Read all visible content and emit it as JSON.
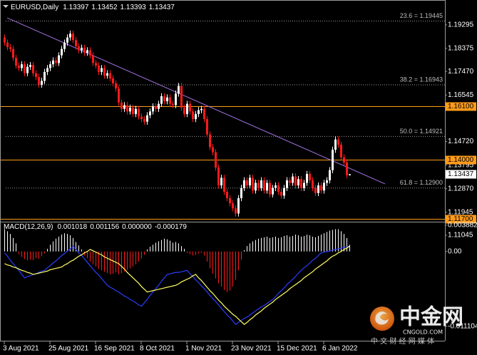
{
  "chart_data": [
    {
      "type": "candlestick",
      "title": "EURUSD,Daily",
      "up_color": "#ffffff",
      "down_color": "#ff1a1a",
      "open": [
        1.188,
        1.186,
        1.1842,
        1.1835,
        1.18,
        1.177,
        1.176,
        1.1775,
        1.174,
        1.1765,
        1.1772,
        1.174,
        1.1725,
        1.1695,
        1.171,
        1.1745,
        1.176,
        1.1775,
        1.179,
        1.178,
        1.181,
        1.1835,
        1.186,
        1.188,
        1.1895,
        1.187,
        1.1845,
        1.183,
        1.184,
        1.182,
        1.183,
        1.181,
        1.178,
        1.177,
        1.1745,
        1.176,
        1.173,
        1.174,
        1.172,
        1.17,
        1.168,
        1.1625,
        1.16,
        1.1615,
        1.159,
        1.1605,
        1.158,
        1.16,
        1.157,
        1.156,
        1.155,
        1.1575,
        1.159,
        1.161,
        1.16,
        1.162,
        1.165,
        1.163,
        1.1645,
        1.162,
        1.1615,
        1.166,
        1.169,
        1.1605,
        1.158,
        1.162,
        1.159,
        1.156,
        1.158,
        1.1595,
        1.16,
        1.156,
        1.15,
        1.145,
        1.143,
        1.137,
        1.13,
        1.133,
        1.1275,
        1.125,
        1.123,
        1.121,
        1.119,
        1.125,
        1.129,
        1.132,
        1.13,
        1.133,
        1.128,
        1.131,
        1.129,
        1.132,
        1.128,
        1.131,
        1.1265,
        1.129,
        1.13,
        1.1275,
        1.126,
        1.129,
        1.132,
        1.131,
        1.1335,
        1.13,
        1.1325,
        1.129,
        1.131,
        1.1345,
        1.132,
        1.129,
        1.127,
        1.13,
        1.128,
        1.131,
        1.132,
        1.136,
        1.144,
        1.148,
        1.146,
        1.141,
        1.139,
        1.13397
      ],
      "high": [
        1.1892,
        1.1872,
        1.1854,
        1.1847,
        1.1812,
        1.1782,
        1.1787,
        1.1787,
        1.1777,
        1.1784,
        1.1784,
        1.1752,
        1.1737,
        1.1722,
        1.1757,
        1.1772,
        1.1787,
        1.1802,
        1.1802,
        1.1822,
        1.1847,
        1.1872,
        1.1892,
        1.1907,
        1.1907,
        1.1882,
        1.1857,
        1.1852,
        1.1852,
        1.1842,
        1.1842,
        1.1822,
        1.1792,
        1.1782,
        1.1772,
        1.1772,
        1.1752,
        1.1752,
        1.1732,
        1.1712,
        1.1692,
        1.1637,
        1.1627,
        1.1627,
        1.1617,
        1.1617,
        1.1612,
        1.1612,
        1.1582,
        1.1572,
        1.1587,
        1.1602,
        1.1622,
        1.1622,
        1.1632,
        1.1662,
        1.1662,
        1.1657,
        1.1657,
        1.1632,
        1.1672,
        1.1702,
        1.1702,
        1.1617,
        1.1632,
        1.1632,
        1.1602,
        1.1592,
        1.1607,
        1.1612,
        1.1612,
        1.1572,
        1.1512,
        1.1462,
        1.1442,
        1.1382,
        1.1342,
        1.1342,
        1.1287,
        1.1262,
        1.1242,
        1.1222,
        1.1262,
        1.1302,
        1.1332,
        1.1332,
        1.1342,
        1.1342,
        1.1322,
        1.1322,
        1.1332,
        1.1332,
        1.1322,
        1.1322,
        1.1302,
        1.1312,
        1.1312,
        1.1287,
        1.1302,
        1.1332,
        1.1332,
        1.1347,
        1.1347,
        1.1337,
        1.1337,
        1.1322,
        1.1357,
        1.1357,
        1.1332,
        1.1302,
        1.1312,
        1.1312,
        1.1322,
        1.1332,
        1.1372,
        1.1452,
        1.1492,
        1.1492,
        1.1472,
        1.1422,
        1.1402,
        1.13452
      ],
      "low": [
        1.1848,
        1.183,
        1.1823,
        1.1788,
        1.1758,
        1.1748,
        1.1748,
        1.1728,
        1.1728,
        1.1753,
        1.1728,
        1.1713,
        1.1683,
        1.1683,
        1.1698,
        1.1733,
        1.1748,
        1.1763,
        1.1768,
        1.1768,
        1.1798,
        1.1823,
        1.1848,
        1.1868,
        1.1858,
        1.1833,
        1.1818,
        1.1818,
        1.1808,
        1.1808,
        1.1798,
        1.1768,
        1.1758,
        1.1733,
        1.1733,
        1.1718,
        1.1718,
        1.1708,
        1.1688,
        1.1668,
        1.1613,
        1.1588,
        1.1588,
        1.1578,
        1.1578,
        1.1568,
        1.1568,
        1.1558,
        1.1548,
        1.1538,
        1.1538,
        1.1563,
        1.1578,
        1.1588,
        1.1588,
        1.1608,
        1.1618,
        1.1618,
        1.1608,
        1.1603,
        1.1603,
        1.1648,
        1.1593,
        1.1568,
        1.1568,
        1.1578,
        1.1548,
        1.1548,
        1.1568,
        1.1583,
        1.1548,
        1.1488,
        1.1438,
        1.1418,
        1.1358,
        1.1288,
        1.1288,
        1.1263,
        1.1238,
        1.1218,
        1.1198,
        1.1178,
        1.1178,
        1.1238,
        1.1278,
        1.1288,
        1.1288,
        1.1268,
        1.1268,
        1.1278,
        1.1278,
        1.1268,
        1.1268,
        1.1253,
        1.1253,
        1.1278,
        1.1263,
        1.1248,
        1.1248,
        1.1278,
        1.1298,
        1.1298,
        1.1288,
        1.1288,
        1.1278,
        1.1278,
        1.1298,
        1.1308,
        1.1278,
        1.1258,
        1.1258,
        1.1268,
        1.1268,
        1.1298,
        1.1308,
        1.1348,
        1.1428,
        1.1448,
        1.1398,
        1.1378,
        1.1328,
        1.13393
      ],
      "close": [
        1.186,
        1.1842,
        1.1835,
        1.18,
        1.177,
        1.176,
        1.1775,
        1.174,
        1.1765,
        1.1772,
        1.174,
        1.1725,
        1.1695,
        1.171,
        1.1745,
        1.176,
        1.1775,
        1.179,
        1.178,
        1.181,
        1.1835,
        1.186,
        1.188,
        1.1895,
        1.187,
        1.1845,
        1.183,
        1.184,
        1.182,
        1.183,
        1.181,
        1.178,
        1.177,
        1.1745,
        1.176,
        1.173,
        1.174,
        1.172,
        1.17,
        1.168,
        1.1625,
        1.16,
        1.1615,
        1.159,
        1.1605,
        1.158,
        1.16,
        1.157,
        1.156,
        1.155,
        1.1575,
        1.159,
        1.161,
        1.16,
        1.162,
        1.165,
        1.163,
        1.1645,
        1.162,
        1.1615,
        1.166,
        1.169,
        1.1605,
        1.158,
        1.162,
        1.159,
        1.156,
        1.158,
        1.1595,
        1.16,
        1.156,
        1.15,
        1.145,
        1.143,
        1.137,
        1.13,
        1.133,
        1.1275,
        1.125,
        1.123,
        1.121,
        1.119,
        1.125,
        1.129,
        1.132,
        1.13,
        1.133,
        1.128,
        1.131,
        1.129,
        1.132,
        1.128,
        1.131,
        1.1265,
        1.129,
        1.13,
        1.1275,
        1.126,
        1.129,
        1.132,
        1.131,
        1.1335,
        1.13,
        1.1325,
        1.129,
        1.131,
        1.1345,
        1.132,
        1.129,
        1.127,
        1.13,
        1.128,
        1.131,
        1.132,
        1.136,
        1.144,
        1.148,
        1.146,
        1.141,
        1.139,
        1.134,
        1.13437
      ],
      "ylim": [
        1.1155,
        1.2027
      ],
      "yticks": [
        1.19295,
        1.18375,
        {
          "value": 1.1747,
          "label": "1.17470"
        },
        1.16545,
        {
          "value": 1.1472,
          "label": "1.14720"
        },
        1.13795,
        {
          "value": 1.1287,
          "label": "1.12870"
        },
        1.11945,
        1.11045
      ],
      "xticks": [
        {
          "value": 0,
          "label": "3 Aug 2021"
        },
        {
          "value": 16,
          "label": "25 Aug 2021"
        },
        {
          "value": 32,
          "label": "16 Sep 2021"
        },
        {
          "value": 48,
          "label": "8 Oct 2021"
        },
        {
          "value": 64,
          "label": "1 Nov 2021"
        },
        {
          "value": 80,
          "label": "23 Nov 2021"
        },
        {
          "value": 96,
          "label": "15 Dec 2021"
        },
        {
          "value": 112,
          "label": "6 Jan 2022"
        }
      ],
      "fibonacci": {
        "color": "#9a9a9a",
        "levels": [
          {
            "value": 1.19445,
            "label": "23.6 = 1.19445"
          },
          {
            "value": 1.16943,
            "label": "38.2 = 1.16943"
          },
          {
            "value": 1.14921,
            "label": "50.0 = 1.14921"
          },
          {
            "value": 1.129,
            "label": "61.8 = 1.12900"
          }
        ]
      },
      "horizontal_lines": {
        "color": "#ff9b1a",
        "levels": [
          {
            "value": 1.161,
            "label": "1.16100"
          },
          {
            "value": 1.14,
            "label": "1.14000"
          },
          {
            "value": 1.117,
            "label": "1.11700"
          }
        ]
      },
      "trendline": {
        "color": "#a070e0",
        "x": [
          1,
          133.5
        ],
        "y": [
          1.1957,
          1.1306
        ]
      },
      "current_price": {
        "value": 1.13437,
        "label": "1.13437"
      }
    },
    {
      "type": "macd",
      "title": "MACD(12,26,9)",
      "readout": [
        0.001018,
        0.001156,
        {
          "value": 0,
          "label": "0.000000"
        },
        -0.000179
      ],
      "histogram": {
        "up_color": "#ffffff",
        "down_color": "#ff1a1a",
        "values": [
          0.0033,
          0.003,
          0.0026,
          0.002,
          0.0012,
          -0.0004,
          -0.0008,
          -0.0011,
          -0.0013,
          -0.0012,
          -0.0013,
          -0.001,
          -0.0011,
          -0.0007,
          -0.0003,
          0.0004,
          0.001,
          0.0015,
          0.0019,
          0.0022,
          0.0025,
          0.0027,
          0.0026,
          0.0024,
          0.002,
          0.0014,
          0.0009,
          0.0003,
          -0.0006,
          -0.001,
          -0.0015,
          -0.0019,
          -0.0022,
          -0.0026,
          -0.0028,
          -0.003,
          -0.0032,
          -0.0034,
          -0.0033,
          -0.0031,
          -0.0034,
          -0.0032,
          -0.003,
          -0.0027,
          -0.0025,
          -0.0022,
          -0.0019,
          -0.0015,
          -0.001,
          -0.0005,
          0.0003,
          0.0007,
          0.001,
          0.0013,
          0.0015,
          0.0017,
          0.0019,
          0.0018,
          0.0016,
          0.0013,
          0.0014,
          0.0012,
          0.0008,
          0.0004,
          -0.0002,
          -0.0004,
          -0.0006,
          -0.0005,
          -0.0003,
          -0.0002,
          -0.0006,
          -0.0015,
          -0.0025,
          -0.0033,
          -0.004,
          -0.0047,
          -0.0052,
          -0.0057,
          -0.006,
          -0.0058,
          -0.0052,
          -0.0042,
          -0.0028,
          -0.0012,
          0.0002,
          0.0008,
          0.0012,
          0.0015,
          0.0017,
          0.0019,
          0.002,
          0.0021,
          0.0022,
          0.002,
          0.0021,
          0.0022,
          0.002,
          0.0021,
          0.0023,
          0.0024,
          0.0022,
          0.0023,
          0.0025,
          0.0024,
          0.0022,
          0.0023,
          0.0025,
          0.0024,
          0.0022,
          0.0021,
          0.0023,
          0.0025,
          0.0027,
          0.0029,
          0.0031,
          0.0032,
          0.0033,
          0.0033,
          0.003,
          0.0026,
          0.002,
          0.001
        ]
      },
      "lines": [
        {
          "color": "#2b3cff",
          "values": [
            -0.0002,
            -0.0007,
            -0.0013,
            -0.0018,
            -0.0023,
            -0.0028,
            -0.0034,
            -0.0039,
            -0.0037,
            -0.0036,
            -0.0034,
            -0.0033,
            -0.0031,
            -0.0029,
            -0.0028,
            -0.0024,
            -0.0021,
            -0.0017,
            -0.0014,
            -0.001,
            -0.0006,
            -0.0003,
            0.0001,
            0.0004,
            0.0008,
            0.0003,
            -0.0002,
            -0.0006,
            -0.0011,
            -0.0016,
            -0.0021,
            -0.0026,
            -0.0031,
            -0.0035,
            -0.004,
            -0.0045,
            -0.005,
            -0.0053,
            -0.0055,
            -0.0058,
            -0.006,
            -0.0063,
            -0.0066,
            -0.0068,
            -0.0071,
            -0.0073,
            -0.0076,
            -0.0079,
            -0.0081,
            -0.0076,
            -0.0071,
            -0.0065,
            -0.006,
            -0.0055,
            -0.005,
            -0.0044,
            -0.0039,
            -0.0034,
            -0.0033,
            -0.0032,
            -0.0031,
            -0.0031,
            -0.003,
            -0.0029,
            -0.0028,
            -0.0033,
            -0.0037,
            -0.0042,
            -0.0046,
            -0.0051,
            -0.0055,
            -0.006,
            -0.0065,
            -0.007,
            -0.0074,
            -0.0079,
            -0.0084,
            -0.0089,
            -0.0094,
            -0.0098,
            -0.0103,
            -0.0108,
            -0.0105,
            -0.0102,
            -0.0099,
            -0.0097,
            -0.0094,
            -0.0091,
            -0.0088,
            -0.0085,
            -0.0082,
            -0.008,
            -0.0077,
            -0.0074,
            -0.0071,
            -0.0067,
            -0.0062,
            -0.0058,
            -0.0054,
            -0.0049,
            -0.0045,
            -0.0041,
            -0.0037,
            -0.0032,
            -0.0028,
            -0.0024,
            -0.0021,
            -0.0017,
            -0.0013,
            -0.001,
            -0.0006,
            -0.0002,
            -0.0001,
            0.0,
            0.0001,
            0.0002,
            0.0003,
            0.0004,
            0.0005,
            0.0006,
            0.0007,
            0.0008
          ]
        },
        {
          "color": "#ffff66",
          "values": [
            -0.0018,
            -0.002,
            -0.0021,
            -0.0023,
            -0.0024,
            -0.0026,
            -0.0028,
            -0.0029,
            -0.0031,
            -0.0032,
            -0.0034,
            -0.0033,
            -0.0032,
            -0.0031,
            -0.003,
            -0.0029,
            -0.0027,
            -0.0026,
            -0.0025,
            -0.0024,
            -0.0023,
            -0.002,
            -0.0018,
            -0.0015,
            -0.0013,
            -0.001,
            -0.0007,
            -0.0005,
            -0.0002,
            0.0,
            0.0003,
            0.0001,
            -0.0001,
            -0.0003,
            -0.0005,
            -0.0008,
            -0.001,
            -0.0012,
            -0.0014,
            -0.0016,
            -0.0018,
            -0.0022,
            -0.0026,
            -0.0031,
            -0.0035,
            -0.0039,
            -0.0043,
            -0.0047,
            -0.0052,
            -0.0056,
            -0.006,
            -0.0059,
            -0.0058,
            -0.0057,
            -0.0056,
            -0.0055,
            -0.0054,
            -0.0053,
            -0.0052,
            -0.0051,
            -0.005,
            -0.0048,
            -0.0045,
            -0.0043,
            -0.0041,
            -0.0039,
            -0.0036,
            -0.0034,
            -0.0039,
            -0.0043,
            -0.0048,
            -0.0053,
            -0.0058,
            -0.0062,
            -0.0067,
            -0.0072,
            -0.0076,
            -0.0081,
            -0.0085,
            -0.0089,
            -0.0093,
            -0.0096,
            -0.01,
            -0.0104,
            -0.0108,
            -0.0105,
            -0.0101,
            -0.0098,
            -0.0094,
            -0.0091,
            -0.0088,
            -0.0084,
            -0.0081,
            -0.0078,
            -0.0075,
            -0.0071,
            -0.0068,
            -0.0065,
            -0.0062,
            -0.0059,
            -0.0055,
            -0.0052,
            -0.0049,
            -0.0046,
            -0.0043,
            -0.0039,
            -0.0036,
            -0.0033,
            -0.003,
            -0.0026,
            -0.0023,
            -0.002,
            -0.0017,
            -0.0014,
            -0.001,
            -0.0007,
            -0.0005,
            -0.0002,
            0.0,
            0.0003,
            0.0005,
            0.0008
          ]
        }
      ],
      "y2lim": [
        -0.011104,
        0.003882
      ],
      "y2ticks": [
        0.003882,
        {
          "value": 0,
          "label": "0.00"
        },
        -0.011104
      ]
    }
  ],
  "watermark": {
    "brand": "中金网",
    "site": "CNGOLD.COM",
    "tagline": "中 文 财 经 网 媒 体"
  }
}
